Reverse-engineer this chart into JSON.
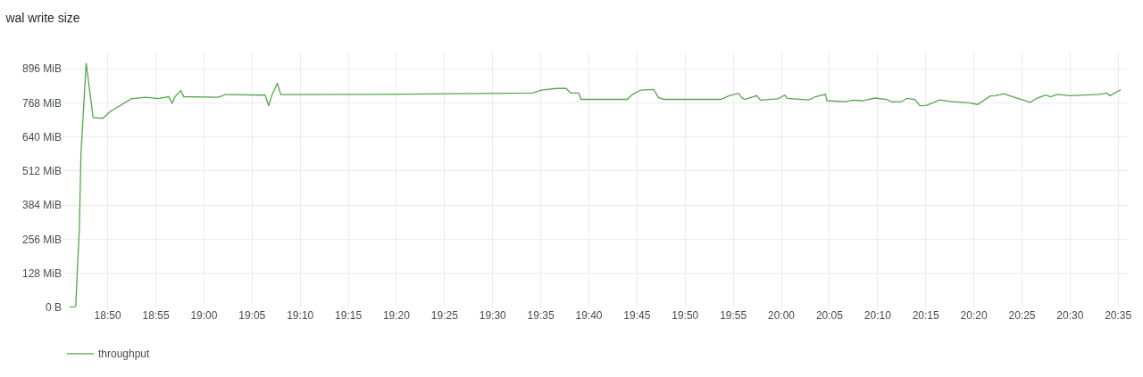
{
  "chart_data": {
    "type": "line",
    "title": "wal write size",
    "x": [
      18.768,
      18.775,
      18.778,
      18.781,
      18.784,
      18.787,
      18.796,
      18.808,
      18.825,
      18.837,
      18.874,
      18.899,
      18.92,
      18.939,
      18.945,
      18.949,
      18.96,
      18.965,
      19.025,
      19.037,
      19.106,
      19.112,
      19.118,
      19.127,
      19.133,
      19.308,
      19.569,
      19.584,
      19.61,
      19.627,
      19.635,
      19.649,
      19.653,
      19.733,
      19.742,
      19.756,
      19.779,
      19.787,
      19.796,
      19.895,
      19.909,
      19.926,
      19.932,
      19.937,
      19.957,
      19.964,
      19.994,
      20.006,
      20.01,
      20.047,
      20.059,
      20.076,
      20.079,
      20.11,
      20.124,
      20.141,
      20.162,
      20.182,
      20.19,
      20.208,
      20.217,
      20.231,
      20.24,
      20.251,
      20.274,
      20.294,
      20.325,
      20.34,
      20.362,
      20.371,
      20.385,
      20.408,
      20.431,
      20.443,
      20.458,
      20.466,
      20.478,
      20.5,
      20.55,
      20.564,
      20.569,
      20.588
    ],
    "series": [
      {
        "name": "throughput",
        "color": "#56a64b",
        "values": [
          3,
          0,
          6,
          156,
          283,
          577,
          917,
          713,
          710,
          734,
          783,
          789,
          784,
          791,
          765,
          789,
          814,
          791,
          789,
          799,
          797,
          757,
          799,
          842,
          799,
          800,
          805,
          816,
          822,
          822,
          805,
          805,
          781,
          781,
          799,
          816,
          818,
          788,
          781,
          781,
          794,
          804,
          786,
          781,
          795,
          778,
          783,
          797,
          785,
          779,
          791,
          800,
          776,
          772,
          778,
          776,
          786,
          781,
          772,
          772,
          785,
          781,
          757,
          758,
          779,
          773,
          768,
          762,
          794,
          795,
          802,
          786,
          770,
          786,
          797,
          791,
          800,
          795,
          800,
          805,
          795,
          818
        ]
      }
    ],
    "xlim": [
      18.755,
      20.6
    ],
    "xticks": [
      {
        "value": 18.8333,
        "label": "18:50"
      },
      {
        "value": 18.9167,
        "label": "18:55"
      },
      {
        "value": 19.0,
        "label": "19:00"
      },
      {
        "value": 19.0833,
        "label": "19:05"
      },
      {
        "value": 19.1667,
        "label": "19:10"
      },
      {
        "value": 19.25,
        "label": "19:15"
      },
      {
        "value": 19.3333,
        "label": "19:20"
      },
      {
        "value": 19.4167,
        "label": "19:25"
      },
      {
        "value": 19.5,
        "label": "19:30"
      },
      {
        "value": 19.5833,
        "label": "19:35"
      },
      {
        "value": 19.6667,
        "label": "19:40"
      },
      {
        "value": 19.75,
        "label": "19:45"
      },
      {
        "value": 19.8333,
        "label": "19:50"
      },
      {
        "value": 19.9167,
        "label": "19:55"
      },
      {
        "value": 20.0,
        "label": "20:00"
      },
      {
        "value": 20.0833,
        "label": "20:05"
      },
      {
        "value": 20.1667,
        "label": "20:10"
      },
      {
        "value": 20.25,
        "label": "20:15"
      },
      {
        "value": 20.3333,
        "label": "20:20"
      },
      {
        "value": 20.4167,
        "label": "20:25"
      },
      {
        "value": 20.5,
        "label": "20:30"
      },
      {
        "value": 20.5833,
        "label": "20:35"
      }
    ],
    "ylim": [
      0,
      960
    ],
    "yticks": [
      {
        "value": 0,
        "label": "0 B"
      },
      {
        "value": 128,
        "label": "128 MiB"
      },
      {
        "value": 256,
        "label": "256 MiB"
      },
      {
        "value": 384,
        "label": "384 MiB"
      },
      {
        "value": 512,
        "label": "512 MiB"
      },
      {
        "value": 640,
        "label": "640 MiB"
      },
      {
        "value": 768,
        "label": "768 MiB"
      },
      {
        "value": 896,
        "label": "896 MiB"
      }
    ],
    "grid": true,
    "legend": "bottom left",
    "marker": "none",
    "line_style": "solid"
  }
}
